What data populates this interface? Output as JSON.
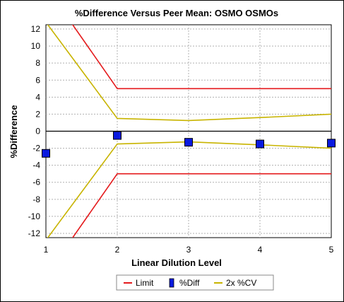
{
  "chart_data": {
    "type": "line",
    "title": "%Difference Versus Peer Mean:  OSMO OSMOs",
    "xlabel": "Linear Dilution Level",
    "ylabel": "%Difference",
    "xlim": [
      1,
      5
    ],
    "ylim": [
      -12.5,
      12.5
    ],
    "x_ticks": [
      1,
      2,
      3,
      4,
      5
    ],
    "y_ticks": [
      12,
      10,
      8,
      6,
      4,
      2,
      0,
      -2,
      -4,
      -6,
      -8,
      -10,
      -12
    ],
    "grid": true,
    "legend_position": "bottom",
    "series": [
      {
        "name": "Limit",
        "style": "line",
        "color": "#e41a1c",
        "x": [
          1,
          2,
          3,
          4,
          5
        ],
        "y": [
          17,
          5,
          5,
          5,
          5
        ]
      },
      {
        "name": "Limit",
        "style": "line",
        "color": "#e41a1c",
        "legend": false,
        "x": [
          1,
          2,
          3,
          4,
          5
        ],
        "y": [
          -17,
          -5,
          -5,
          -5,
          -5
        ]
      },
      {
        "name": "%Diff",
        "style": "marker",
        "color": "#0a1adf",
        "x": [
          1,
          2,
          3,
          4,
          5
        ],
        "y": [
          -2.6,
          -0.5,
          -1.3,
          -1.5,
          -1.4
        ]
      },
      {
        "name": "2x %CV",
        "style": "line",
        "color": "#c8b400",
        "x": [
          1,
          2,
          3,
          4,
          5
        ],
        "y": [
          12.8,
          1.5,
          1.25,
          1.6,
          2.0
        ]
      },
      {
        "name": "2x %CV",
        "style": "line",
        "color": "#c8b400",
        "legend": false,
        "x": [
          1,
          2,
          3,
          4,
          5
        ],
        "y": [
          -12.8,
          -1.5,
          -1.25,
          -1.6,
          -2.0
        ]
      }
    ],
    "legend": [
      {
        "label": "Limit",
        "symbol": "line",
        "color": "#e41a1c"
      },
      {
        "label": "%Diff",
        "symbol": "marker",
        "color": "#0a1adf"
      },
      {
        "label": "2x %CV",
        "symbol": "line",
        "color": "#c8b400"
      }
    ]
  }
}
